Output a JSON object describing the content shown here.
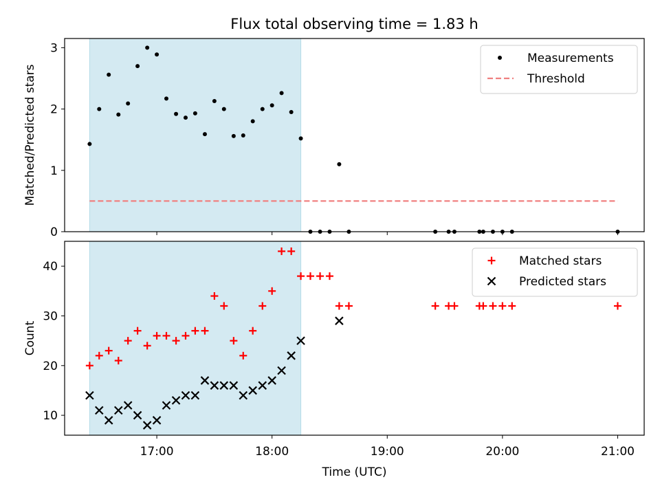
{
  "chart_data": [
    {
      "type": "scatter",
      "title": "Flux total observing time = 1.83 h",
      "xlabel": "",
      "ylabel": "Matched/Predicted stars",
      "ylim": [
        0,
        3.15
      ],
      "yticks": [
        0,
        1,
        2,
        3
      ],
      "shaded_span": {
        "from": 16.417,
        "to": 18.25,
        "color": "#add8e6"
      },
      "series": [
        {
          "name": "Measurements",
          "color": "#000000",
          "x": [
            16.417,
            16.5,
            16.583,
            16.667,
            16.75,
            16.833,
            16.917,
            17.0,
            17.083,
            17.167,
            17.25,
            17.333,
            17.417,
            17.5,
            17.583,
            17.667,
            17.75,
            17.833,
            17.917,
            18.0,
            18.083,
            18.167,
            18.25,
            18.333,
            18.417,
            18.5,
            18.583,
            18.667,
            19.417,
            19.533,
            19.583,
            19.8,
            19.833,
            19.917,
            20.0,
            20.083,
            21.0
          ],
          "y": [
            1.43,
            2.0,
            2.56,
            1.91,
            2.09,
            2.7,
            3.0,
            2.89,
            2.17,
            1.92,
            1.86,
            1.93,
            1.59,
            2.13,
            2.0,
            1.56,
            1.57,
            1.8,
            2.0,
            2.06,
            2.26,
            1.95,
            1.52,
            0,
            0,
            0,
            1.1,
            0,
            0,
            0,
            0,
            0,
            0,
            0,
            0,
            0,
            0
          ]
        },
        {
          "name": "Threshold",
          "color": "#f08080",
          "style": "dashed",
          "x": [
            16.417,
            21.0
          ],
          "y": [
            0.5,
            0.5
          ]
        }
      ],
      "legend": "top-right"
    },
    {
      "type": "scatter",
      "title": "",
      "xlabel": "Time (UTC)",
      "ylabel": "Count",
      "ylim": [
        6,
        45
      ],
      "yticks": [
        10,
        20,
        30,
        40
      ],
      "xlim": [
        16.2,
        21.23
      ],
      "xticks": [
        17,
        18,
        19,
        20,
        21
      ],
      "xticklabels": [
        "17:00",
        "18:00",
        "19:00",
        "20:00",
        "21:00"
      ],
      "shaded_span": {
        "from": 16.417,
        "to": 18.25,
        "color": "#add8e6"
      },
      "series": [
        {
          "name": "Matched stars",
          "color": "#ff0000",
          "marker": "plus",
          "x": [
            16.417,
            16.5,
            16.583,
            16.667,
            16.75,
            16.833,
            16.917,
            17.0,
            17.083,
            17.167,
            17.25,
            17.333,
            17.417,
            17.5,
            17.583,
            17.667,
            17.75,
            17.833,
            17.917,
            18.0,
            18.083,
            18.167,
            18.25,
            18.333,
            18.417,
            18.5,
            18.583,
            18.667,
            19.417,
            19.533,
            19.583,
            19.8,
            19.833,
            19.917,
            20.0,
            20.083,
            21.0
          ],
          "y": [
            20,
            22,
            23,
            21,
            25,
            27,
            24,
            26,
            26,
            25,
            26,
            27,
            27,
            34,
            32,
            25,
            22,
            27,
            32,
            35,
            43,
            43,
            38,
            38,
            38,
            38,
            32,
            32,
            32,
            32,
            32,
            32,
            32,
            32,
            32,
            32,
            32
          ]
        },
        {
          "name": "Predicted stars",
          "color": "#000000",
          "marker": "x",
          "x": [
            16.417,
            16.5,
            16.583,
            16.667,
            16.75,
            16.833,
            16.917,
            17.0,
            17.083,
            17.167,
            17.25,
            17.333,
            17.417,
            17.5,
            17.583,
            17.667,
            17.75,
            17.833,
            17.917,
            18.0,
            18.083,
            18.167,
            18.25,
            18.583
          ],
          "y": [
            14,
            11,
            9,
            11,
            12,
            10,
            8,
            9,
            12,
            13,
            14,
            14,
            17,
            16,
            16,
            16,
            14,
            15,
            16,
            17,
            19,
            22,
            25,
            29
          ]
        }
      ],
      "legend": "top-right"
    }
  ]
}
